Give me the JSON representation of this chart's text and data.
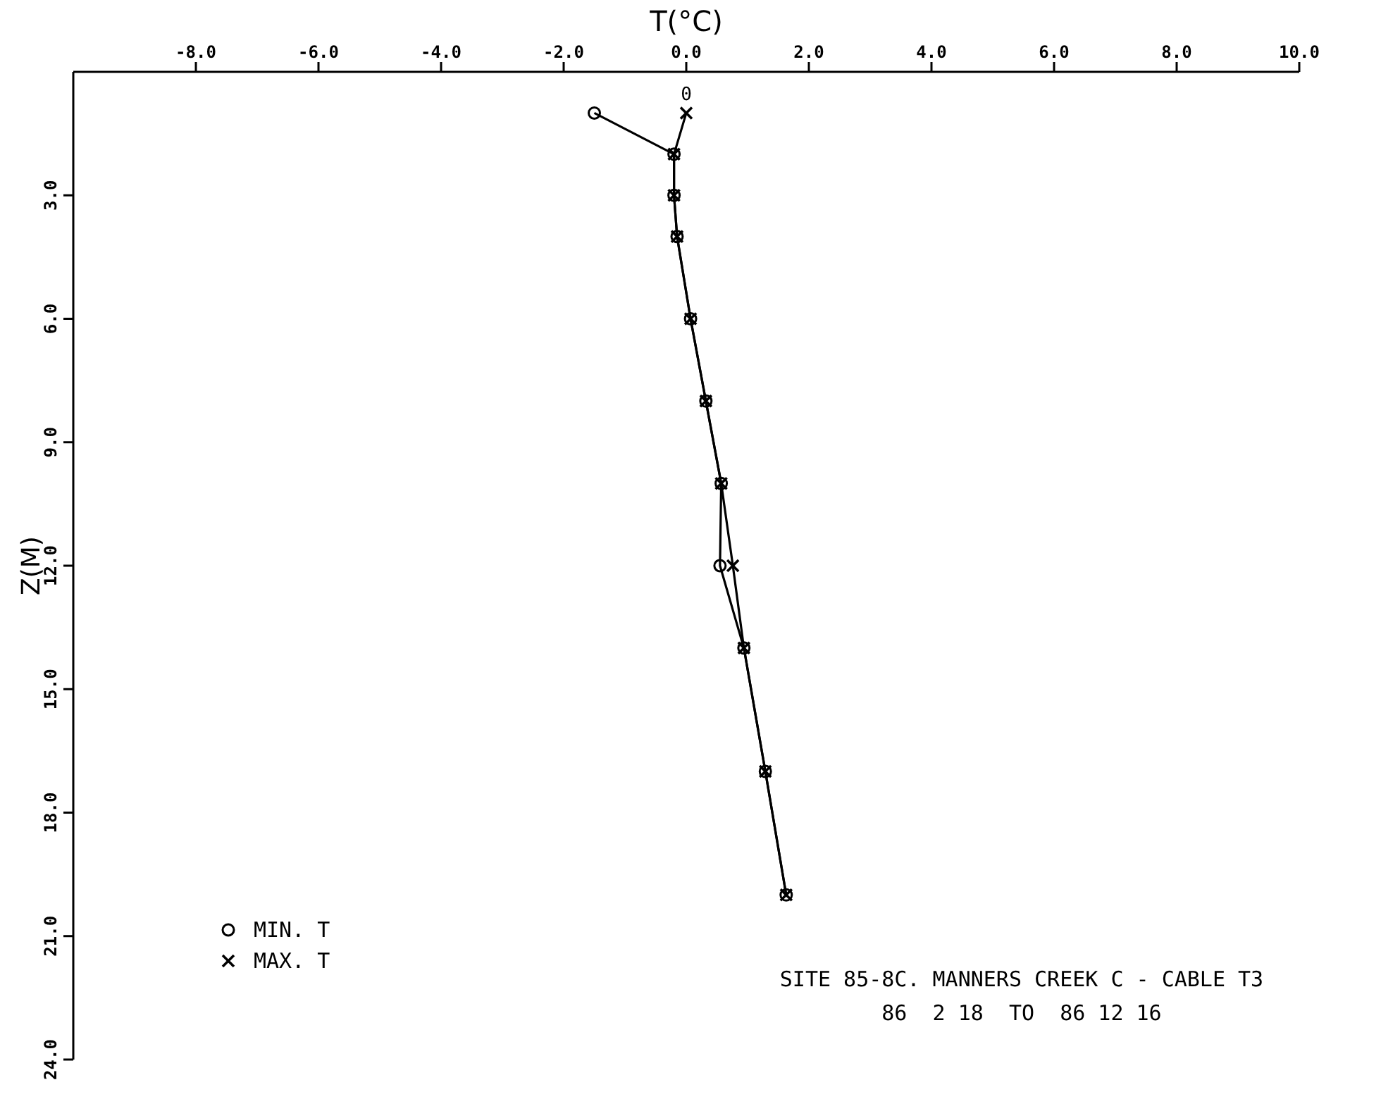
{
  "chart_data": {
    "type": "line",
    "xlabel": "T(°C)",
    "ylabel": "Z(M)",
    "xlim": [
      -10,
      10
    ],
    "xticks": [
      {
        "value": -8,
        "label": "-8.0"
      },
      {
        "value": -6,
        "label": "-6.0"
      },
      {
        "value": -4,
        "label": "-4.0"
      },
      {
        "value": -2,
        "label": "-2.0"
      },
      {
        "value": 0,
        "label": "0.0"
      },
      {
        "value": 2,
        "label": "2.0"
      },
      {
        "value": 4,
        "label": "4.0"
      },
      {
        "value": 6,
        "label": "6.0"
      },
      {
        "value": 8,
        "label": "8.0"
      },
      {
        "value": 10,
        "label": "10.0"
      }
    ],
    "ylim": [
      24,
      0
    ],
    "yticks": [
      {
        "value": 3,
        "label": "3.0"
      },
      {
        "value": 6,
        "label": "6.0"
      },
      {
        "value": 9,
        "label": "9.0"
      },
      {
        "value": 12,
        "label": "12.0"
      },
      {
        "value": 15,
        "label": "15.0"
      },
      {
        "value": 18,
        "label": "18.0"
      },
      {
        "value": 21,
        "label": "21.0"
      },
      {
        "value": 24,
        "label": "24.0"
      }
    ],
    "series": [
      {
        "name": "MIN. T",
        "color": "#000000",
        "marker": "circle",
        "x": [
          -1.5,
          -0.2,
          -0.2,
          -0.15,
          0.07,
          0.32,
          0.57,
          0.55,
          0.94,
          1.29,
          1.63
        ],
        "values": [
          1,
          2,
          3,
          4,
          6,
          8,
          10,
          12,
          14,
          17,
          20
        ]
      },
      {
        "name": "MAX. T",
        "color": "#000000",
        "marker": "cross",
        "x": [
          0.0,
          -0.2,
          -0.2,
          -0.15,
          0.07,
          0.32,
          0.57,
          0.76,
          0.94,
          1.29,
          1.63
        ],
        "values": [
          1,
          2,
          3,
          4,
          6,
          8,
          10,
          12,
          14,
          17,
          20
        ]
      }
    ],
    "legend": "bottom left",
    "grid": false,
    "line_style": "solid",
    "annotations": [
      "0",
      "SITE 85-8C. MANNERS CREEK C - CABLE T3",
      "86  2 18  TO  86 12 16"
    ]
  }
}
